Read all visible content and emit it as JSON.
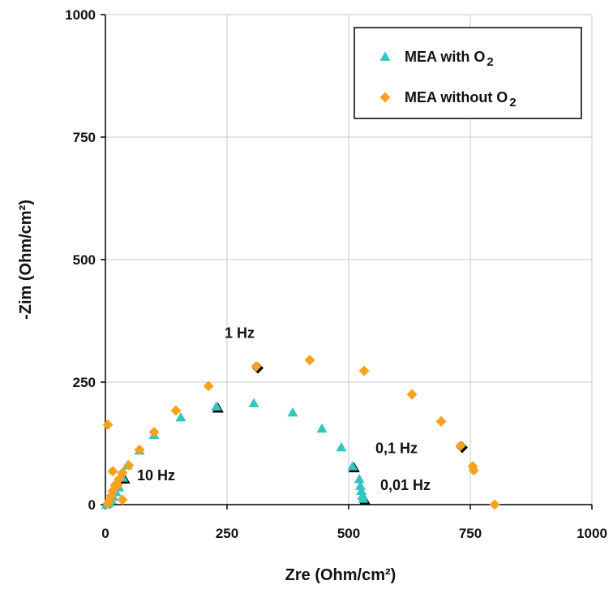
{
  "chart_data": {
    "type": "scatter",
    "xlabel": "Zre (Ohm/cm²)",
    "ylabel": "-Zim (Ohm/cm²)",
    "xlim": [
      0,
      1000
    ],
    "ylim": [
      0,
      1000
    ],
    "x_ticks": [
      "0",
      "250",
      "500",
      "750",
      "1000"
    ],
    "y_ticks": [
      "0",
      "250",
      "500",
      "750",
      "1000"
    ],
    "grid": true,
    "legend_position": "top-right",
    "series": [
      {
        "name": "MEA with O2",
        "label_main": "MEA with O",
        "label_sub": "2",
        "marker": "triangle",
        "color": "#33c4c4",
        "x": [
          2,
          5,
          8,
          12,
          16,
          22,
          28,
          36,
          45,
          70,
          100,
          155,
          228,
          305,
          385,
          445,
          485,
          508,
          522,
          524,
          526,
          528,
          530
        ],
        "y": [
          0,
          2,
          5,
          10,
          16,
          25,
          35,
          55,
          80,
          110,
          142,
          178,
          200,
          207,
          188,
          155,
          117,
          78,
          52,
          38,
          28,
          18,
          12
        ]
      },
      {
        "name": "MEA without O2",
        "label_main": "MEA without O",
        "label_sub": "2",
        "marker": "diamond",
        "color": "#f7a21e",
        "x": [
          5,
          8,
          12,
          15,
          20,
          28,
          35,
          48,
          70,
          100,
          145,
          212,
          310,
          420,
          532,
          630,
          690,
          730,
          755,
          757,
          800,
          5,
          15,
          25,
          35
        ],
        "y": [
          2,
          8,
          18,
          28,
          40,
          52,
          65,
          80,
          112,
          148,
          192,
          242,
          282,
          295,
          273,
          225,
          170,
          120,
          78,
          70,
          0,
          163,
          68,
          40,
          10
        ]
      }
    ],
    "highlighted_points": [
      {
        "x": 36,
        "y": 55,
        "marker": "triangle"
      },
      {
        "x": 228,
        "y": 200,
        "marker": "triangle"
      },
      {
        "x": 508,
        "y": 78,
        "marker": "triangle"
      },
      {
        "x": 530,
        "y": 12,
        "marker": "triangle"
      },
      {
        "x": 310,
        "y": 282,
        "marker": "diamond"
      },
      {
        "x": 730,
        "y": 120,
        "marker": "diamond"
      }
    ],
    "annotations": [
      {
        "text": "1 Hz",
        "x": 245,
        "y": 340
      },
      {
        "text": "10 Hz",
        "x": 65,
        "y": 50
      },
      {
        "text": "0,1 Hz",
        "x": 555,
        "y": 105
      },
      {
        "text": "0,01 Hz",
        "x": 565,
        "y": 30
      }
    ]
  }
}
